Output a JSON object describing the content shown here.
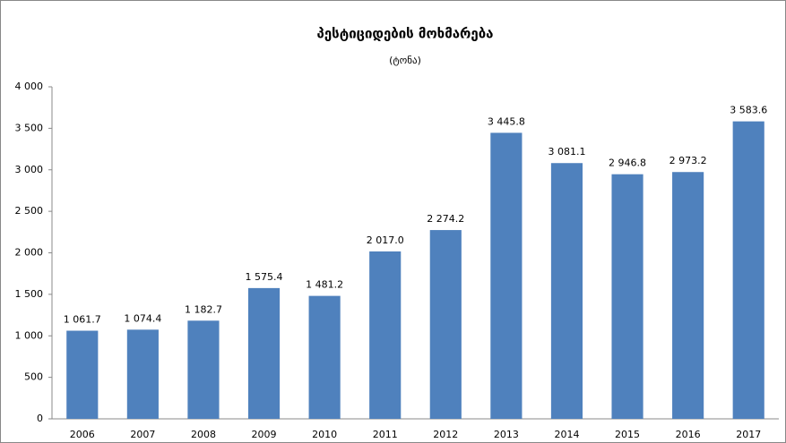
{
  "chart_data": {
    "type": "bar",
    "title": "პესტიციდების მოხმარება",
    "subtitle": "(ტონა)",
    "categories": [
      "2006",
      "2007",
      "2008",
      "2009",
      "2010",
      "2011",
      "2012",
      "2013",
      "2014",
      "2015",
      "2016",
      "2017"
    ],
    "values": [
      1061.7,
      1074.4,
      1182.7,
      1575.4,
      1481.2,
      2017.0,
      2274.2,
      3445.8,
      3081.1,
      2946.8,
      2973.2,
      3583.6
    ],
    "value_labels": [
      "1 061.7",
      "1 074.4",
      "1 182.7",
      "1 575.4",
      "1 481.2",
      "2 017.0",
      "2 274.2",
      "3 445.8",
      "3 081.1",
      "2 946.8",
      "2 973.2",
      "3 583.6"
    ],
    "color": "#4f81bd",
    "ylim": [
      0,
      4000
    ],
    "yticks": [
      0,
      500,
      {
        "value": 1000,
        "label": "1 000"
      },
      {
        "value": 1500,
        "label": "1 500"
      },
      {
        "value": 2000,
        "label": "2 000"
      },
      {
        "value": 2500,
        "label": "2 500"
      },
      {
        "value": 3000,
        "label": "3 000"
      },
      {
        "value": 3500,
        "label": "3 500"
      },
      {
        "value": 4000,
        "label": "4 000"
      }
    ],
    "grid": false
  }
}
